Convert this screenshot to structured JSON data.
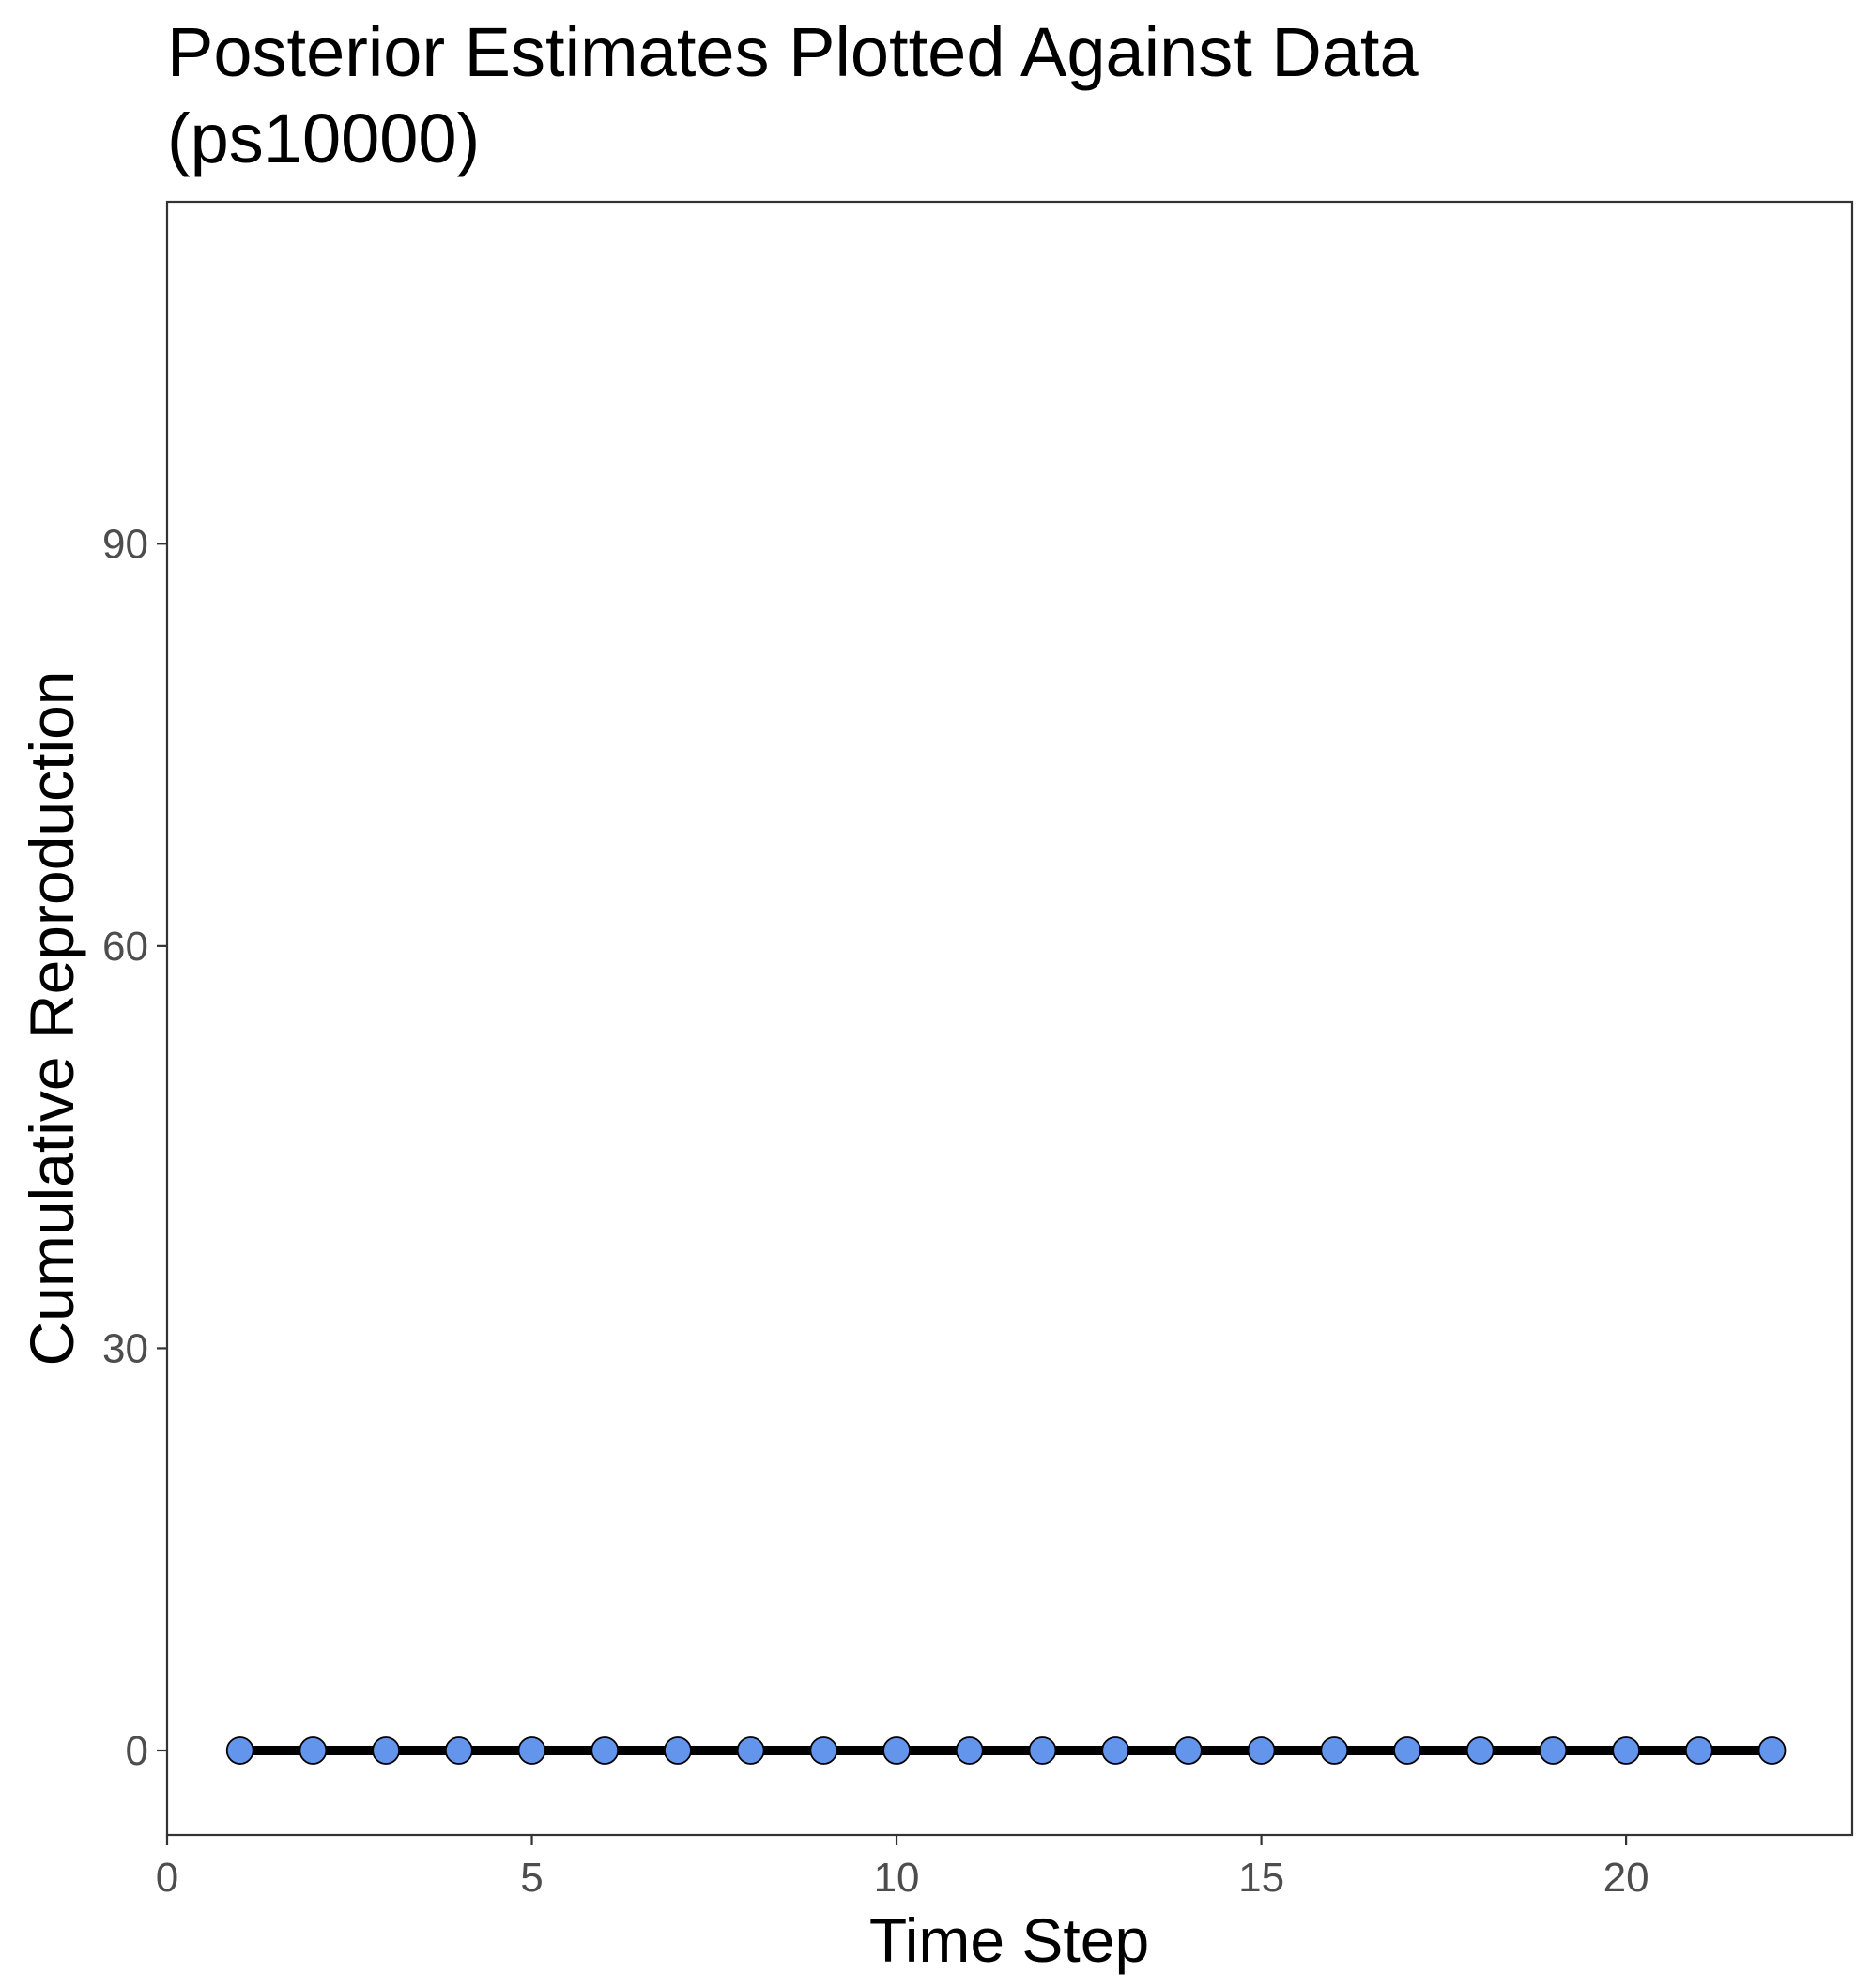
{
  "chart_data": {
    "type": "line",
    "title": "Posterior Estimates Plotted Against Data\n(ps10000)",
    "xlabel": "Time Step",
    "ylabel": "Cumulative Reproduction",
    "x": [
      1,
      2,
      3,
      4,
      5,
      6,
      7,
      8,
      9,
      10,
      11,
      12,
      13,
      14,
      15,
      16,
      17,
      18,
      19,
      20,
      21,
      22
    ],
    "series": [
      {
        "values": [
          0,
          0,
          0,
          0,
          0,
          0,
          0,
          0,
          0,
          0,
          0,
          0,
          0,
          0,
          0,
          0,
          0,
          0,
          0,
          0,
          0,
          0
        ]
      }
    ],
    "xlim": [
      0,
      23.1
    ],
    "ylim": [
      -6.3,
      115.5
    ],
    "xticks": [
      0,
      5,
      10,
      15,
      20
    ],
    "yticks": [
      0,
      30,
      60,
      90
    ],
    "xtick_labels": [
      "0",
      "5",
      "10",
      "15",
      "20"
    ],
    "ytick_labels": [
      "0",
      "30",
      "60",
      "90"
    ],
    "grid": false,
    "legend": "none",
    "colors": {
      "line": "#000000",
      "point_fill": "#6495ED",
      "point_stroke": "#000000",
      "axis_text": "#4D4D4D"
    }
  }
}
